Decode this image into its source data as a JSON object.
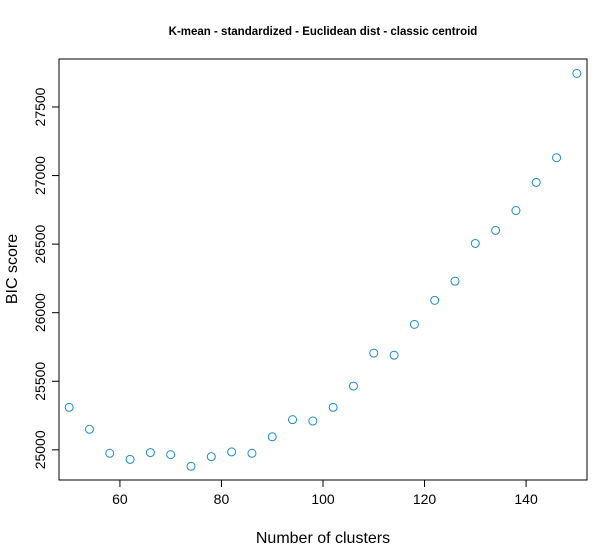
{
  "chart_data": {
    "type": "scatter",
    "title": "K-mean - standardized - Euclidean dist - classic centroid",
    "xlabel": "Number of clusters",
    "ylabel": "BIC score",
    "xlim": [
      48,
      152
    ],
    "ylim": [
      24780,
      27850
    ],
    "xticks": [
      60,
      80,
      100,
      120,
      140
    ],
    "yticks": [
      25000,
      25500,
      26000,
      26500,
      27000,
      27500
    ],
    "grid": false,
    "legend": "none",
    "marker_color": "#1a8ccc",
    "x": [
      50,
      54,
      58,
      62,
      66,
      70,
      74,
      78,
      82,
      86,
      90,
      94,
      98,
      102,
      106,
      110,
      114,
      118,
      122,
      126,
      130,
      134,
      138,
      142,
      146,
      150
    ],
    "y": [
      25310,
      25150,
      24975,
      24930,
      24980,
      24965,
      24880,
      24950,
      24985,
      24975,
      25095,
      25220,
      25210,
      25310,
      25465,
      25705,
      25690,
      25915,
      26090,
      26230,
      26505,
      26600,
      26745,
      26950,
      27130,
      27745
    ]
  }
}
